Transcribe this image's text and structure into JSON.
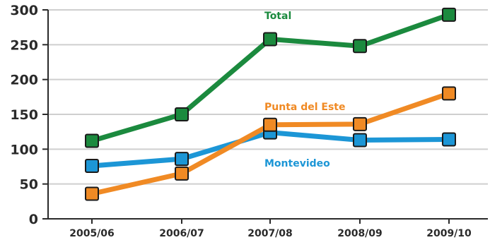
{
  "chart_data": {
    "type": "line",
    "title": "",
    "xlabel": "",
    "ylabel": "",
    "categories": [
      "2005/06",
      "2006/07",
      "2007/08",
      "2008/09",
      "2009/10"
    ],
    "ylim": [
      0,
      300
    ],
    "yticks": [
      0,
      50,
      100,
      150,
      200,
      250,
      300
    ],
    "grid": true,
    "legend": "inline labels next to lines",
    "series": [
      {
        "name": "Total",
        "color": "#1b8a3e",
        "values": [
          112,
          150,
          258,
          248,
          293
        ]
      },
      {
        "name": "Punta del Este",
        "color": "#f08a24",
        "values": [
          36,
          65,
          135,
          136,
          180
        ]
      },
      {
        "name": "Montevideo",
        "color": "#1c96d6",
        "values": [
          76,
          86,
          124,
          113,
          114
        ]
      }
    ]
  }
}
